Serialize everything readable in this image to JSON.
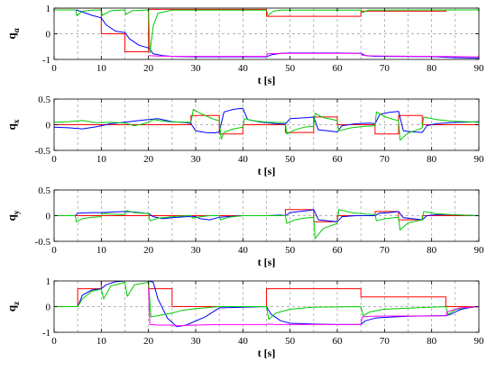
{
  "chart_data": [
    {
      "type": "line",
      "ylabel": "q",
      "ylabel_sub": "α",
      "xlabel": "t [s]",
      "xlim": [
        0,
        90
      ],
      "ylim": [
        -1,
        1
      ],
      "xticks": [
        0,
        10,
        20,
        30,
        40,
        50,
        60,
        70,
        80,
        90
      ],
      "yticks": [
        {
          "v": -1,
          "label": "-1"
        },
        {
          "v": 0,
          "label": "0"
        },
        {
          "v": 1,
          "label": "1"
        }
      ],
      "series": [
        {
          "color": "#ff0000",
          "x": [
            0,
            10,
            10,
            15,
            15,
            20,
            20,
            45,
            45,
            65,
            65,
            83,
            83,
            90
          ],
          "y": [
            1,
            1,
            0,
            0,
            -0.7,
            -0.7,
            0.95,
            0.95,
            0.68,
            0.68,
            0.88,
            0.88,
            0.93,
            0.93
          ]
        },
        {
          "color": "#0000ff",
          "x": [
            0,
            4.5,
            5.5,
            8,
            10,
            11,
            13,
            15,
            16,
            18,
            20,
            21,
            23,
            25,
            30,
            40,
            45,
            46,
            48,
            50,
            60,
            65,
            66,
            68,
            70,
            80,
            85,
            90
          ],
          "y": [
            0.93,
            0.93,
            0.88,
            0.72,
            0.62,
            0.35,
            0.1,
            0.05,
            -0.2,
            -0.45,
            -0.55,
            -0.78,
            -0.85,
            -0.88,
            -0.9,
            -0.9,
            -0.9,
            -0.82,
            -0.76,
            -0.75,
            -0.75,
            -0.76,
            -0.85,
            -0.88,
            -0.88,
            -0.89,
            -0.93,
            -0.95
          ]
        },
        {
          "color": "#00cc00",
          "x": [
            0,
            4.6,
            4.8,
            6,
            8,
            10,
            10.2,
            12,
            15,
            15.2,
            16.5,
            20,
            20.3,
            21,
            22,
            25,
            45,
            45.3,
            46.5,
            48,
            65,
            65.3,
            66.5,
            90
          ],
          "y": [
            0.93,
            0.93,
            0.7,
            0.88,
            0.92,
            0.93,
            0.72,
            0.9,
            0.93,
            0.75,
            0.9,
            0.93,
            -0.75,
            0.3,
            0.8,
            0.92,
            0.92,
            0.72,
            0.88,
            0.92,
            0.92,
            0.82,
            0.92,
            0.93
          ]
        },
        {
          "color": "#ff00ff",
          "x": [
            20,
            22,
            26,
            30,
            45,
            45.2,
            47,
            50,
            60,
            65,
            65.2,
            67,
            70,
            80,
            90
          ],
          "y": [
            -0.85,
            -0.87,
            -0.88,
            -0.88,
            -0.88,
            -0.78,
            -0.77,
            -0.76,
            -0.76,
            -0.76,
            -0.83,
            -0.86,
            -0.87,
            -0.88,
            -0.9
          ]
        }
      ]
    },
    {
      "type": "line",
      "ylabel": "q",
      "ylabel_sub": "x",
      "xlabel": "t [s]",
      "xlim": [
        0,
        90
      ],
      "ylim": [
        -0.5,
        0.5
      ],
      "xticks": [
        0,
        10,
        20,
        30,
        40,
        50,
        60,
        70,
        80,
        90
      ],
      "yticks": [
        {
          "v": -0.5,
          "label": "-0.5"
        },
        {
          "v": 0,
          "label": "0"
        },
        {
          "v": 0.5,
          "label": "0.5"
        }
      ],
      "series": [
        {
          "color": "#ff0000",
          "x": [
            0,
            29,
            29,
            35,
            35,
            40,
            40,
            49,
            49,
            55,
            55,
            60,
            60,
            68,
            68,
            73,
            73,
            78,
            78,
            90
          ],
          "y": [
            0,
            0,
            0.18,
            0.18,
            -0.18,
            -0.18,
            0,
            0,
            -0.15,
            -0.15,
            0.15,
            0.15,
            0,
            0,
            -0.18,
            -0.18,
            0.18,
            0.18,
            0,
            0
          ]
        },
        {
          "color": "#0000ff",
          "x": [
            0,
            3,
            6,
            9,
            12,
            15,
            18,
            20,
            22,
            25,
            28,
            29,
            30,
            32,
            34,
            35,
            36,
            38,
            40,
            41,
            44,
            47,
            49,
            50,
            52,
            54,
            55,
            56,
            58,
            60,
            61,
            64,
            67,
            68,
            69,
            71,
            73,
            74,
            76,
            78,
            79,
            81,
            84,
            87,
            90
          ],
          "y": [
            -0.05,
            -0.06,
            -0.08,
            -0.04,
            0.02,
            0.05,
            0.08,
            0.1,
            0.12,
            0.06,
            0.04,
            0.02,
            -0.12,
            -0.15,
            -0.16,
            -0.14,
            0.25,
            0.3,
            0.32,
            0.1,
            0.05,
            0.02,
            0.01,
            0.12,
            0.13,
            0.14,
            0.15,
            -0.1,
            -0.12,
            -0.14,
            -0.02,
            0.02,
            0.03,
            0.02,
            0.2,
            0.24,
            0.26,
            -0.12,
            -0.14,
            -0.15,
            -0.02,
            0.02,
            0.04,
            0.05,
            0.06
          ]
        },
        {
          "color": "#00cc00",
          "x": [
            0,
            3,
            6,
            9,
            12,
            15,
            17,
            19,
            20,
            21,
            24,
            28,
            29,
            29.5,
            31,
            33,
            34,
            35,
            35.4,
            36,
            38,
            40,
            40.3,
            42,
            45,
            49,
            49.3,
            51,
            53,
            55,
            55.3,
            57,
            59,
            60,
            60.3,
            63,
            66,
            68,
            68.3,
            70,
            72,
            73,
            73.3,
            75,
            77,
            78,
            78.3,
            81,
            84,
            87,
            90
          ],
          "y": [
            0.05,
            0.06,
            0.08,
            0.04,
            0.05,
            0.03,
            -0.02,
            0.02,
            0.05,
            0.1,
            0.06,
            0.05,
            0.05,
            0.3,
            0.22,
            0.14,
            0.1,
            0.08,
            -0.28,
            -0.15,
            -0.08,
            -0.05,
            0.12,
            0.08,
            0.05,
            0.04,
            -0.18,
            -0.1,
            -0.05,
            -0.03,
            0.22,
            0.14,
            0.1,
            0.08,
            -0.12,
            -0.06,
            -0.03,
            -0.02,
            0.25,
            0.16,
            0.1,
            0.08,
            -0.3,
            -0.16,
            -0.1,
            -0.06,
            0.15,
            0.1,
            0.07,
            0.06,
            0.05
          ]
        }
      ]
    },
    {
      "type": "line",
      "ylabel": "q",
      "ylabel_sub": "y",
      "xlabel": "t [s]",
      "xlim": [
        0,
        90
      ],
      "ylim": [
        -0.5,
        0.5
      ],
      "xticks": [
        0,
        10,
        20,
        30,
        40,
        50,
        60,
        70,
        80,
        90
      ],
      "yticks": [
        {
          "v": -0.5,
          "label": "-0.5"
        },
        {
          "v": 0,
          "label": "0"
        },
        {
          "v": 0.5,
          "label": "0.5"
        }
      ],
      "series": [
        {
          "color": "#ff0000",
          "x": [
            0,
            49,
            49,
            55,
            55,
            60,
            60,
            68,
            68,
            73,
            73,
            78,
            78,
            90
          ],
          "y": [
            0,
            0,
            0.12,
            0.12,
            -0.12,
            -0.12,
            0,
            0,
            0.08,
            0.08,
            -0.08,
            -0.08,
            0,
            0
          ]
        },
        {
          "color": "#0000ff",
          "x": [
            0,
            4.5,
            5,
            8,
            10,
            12,
            15,
            17,
            20,
            21,
            23,
            25,
            28,
            30,
            31,
            33,
            35,
            40,
            45,
            48,
            49,
            50,
            52,
            54,
            55,
            56,
            58,
            60,
            61,
            64,
            67,
            68,
            69,
            71,
            73,
            74,
            76,
            78,
            79,
            81,
            84,
            90
          ],
          "y": [
            0,
            0,
            0.05,
            0.06,
            0.06,
            0.07,
            0.08,
            0.07,
            0.04,
            -0.02,
            -0.06,
            -0.04,
            -0.02,
            -0.02,
            -0.06,
            -0.08,
            -0.03,
            0,
            0,
            0.01,
            0,
            0.06,
            0.08,
            0.1,
            0.12,
            -0.08,
            -0.1,
            -0.12,
            -0.02,
            0,
            0,
            0,
            0.05,
            0.06,
            0.08,
            -0.04,
            -0.06,
            -0.08,
            0,
            0.02,
            0.02,
            0
          ]
        },
        {
          "color": "#00cc00",
          "x": [
            0,
            4.5,
            4.7,
            6,
            8,
            10,
            10.3,
            12,
            15,
            15.3,
            17,
            20,
            20.3,
            22,
            24,
            26,
            29,
            29.3,
            31,
            33,
            35,
            35.3,
            37,
            40,
            45,
            49,
            49.3,
            51,
            53,
            55,
            55.3,
            57,
            60,
            60.3,
            63,
            66,
            68,
            68.3,
            70,
            73,
            73.3,
            75,
            78,
            78.3,
            81,
            84,
            90
          ],
          "y": [
            0,
            0,
            -0.12,
            -0.06,
            -0.03,
            -0.02,
            0.05,
            0.03,
            0.02,
            0.1,
            0.06,
            0.04,
            -0.1,
            -0.05,
            -0.03,
            -0.01,
            0,
            -0.05,
            -0.02,
            0,
            0,
            -0.08,
            -0.03,
            0,
            0,
            0,
            -0.15,
            -0.08,
            -0.05,
            -0.03,
            -0.45,
            -0.25,
            -0.15,
            0.12,
            0.06,
            0.03,
            0.02,
            -0.1,
            -0.06,
            -0.03,
            -0.28,
            -0.14,
            -0.08,
            0.08,
            0.04,
            0.02,
            0
          ]
        }
      ]
    },
    {
      "type": "line",
      "ylabel": "q",
      "ylabel_sub": "z",
      "xlabel": "t [s]",
      "xlim": [
        0,
        90
      ],
      "ylim": [
        -1,
        1
      ],
      "xticks": [
        0,
        10,
        20,
        30,
        40,
        50,
        60,
        70,
        80,
        90
      ],
      "yticks": [
        {
          "v": -1,
          "label": "-1"
        },
        {
          "v": 0,
          "label": "0"
        },
        {
          "v": 1,
          "label": "1"
        }
      ],
      "series": [
        {
          "color": "#ff0000",
          "x": [
            0,
            5,
            5,
            10,
            10,
            20,
            20,
            25,
            25,
            45,
            45,
            65,
            65,
            83,
            83,
            90
          ],
          "y": [
            0,
            0,
            0.7,
            0.7,
            1,
            1,
            0.7,
            0.7,
            0,
            0,
            0.7,
            0.7,
            0.38,
            0.38,
            0,
            0
          ]
        },
        {
          "color": "#0000ff",
          "x": [
            0,
            5,
            6,
            8,
            10,
            11,
            13,
            15,
            20,
            21,
            22,
            24,
            26,
            28,
            32,
            35,
            45,
            46,
            48,
            50,
            55,
            60,
            65,
            66,
            68,
            70,
            75,
            80,
            83,
            84,
            86,
            88,
            90
          ],
          "y": [
            0,
            0,
            0.45,
            0.65,
            0.7,
            0.85,
            0.97,
            1,
            1,
            0.95,
            0.3,
            -0.45,
            -0.78,
            -0.72,
            -0.4,
            -0.05,
            0,
            -0.3,
            -0.55,
            -0.65,
            -0.68,
            -0.7,
            -0.7,
            -0.55,
            -0.45,
            -0.42,
            -0.38,
            -0.36,
            -0.35,
            -0.3,
            -0.12,
            -0.04,
            0
          ]
        },
        {
          "color": "#00cc00",
          "x": [
            0,
            5,
            6,
            8,
            10,
            10.5,
            12,
            15,
            15.5,
            17,
            20,
            20.5,
            22,
            25,
            27,
            30,
            35,
            45,
            45.5,
            47,
            50,
            55,
            65,
            65.5,
            67,
            70,
            80,
            83,
            83.5,
            85,
            87,
            90
          ],
          "y": [
            0,
            0,
            0.3,
            0.6,
            0.68,
            0.3,
            0.8,
            0.95,
            0.4,
            0.85,
            0.95,
            -0.4,
            -0.35,
            -0.25,
            -0.15,
            -0.08,
            0,
            0,
            -0.5,
            -0.25,
            -0.1,
            -0.02,
            0,
            -0.35,
            -0.2,
            -0.1,
            -0.02,
            0,
            -0.3,
            -0.12,
            -0.04,
            0
          ]
        },
        {
          "color": "#ff00ff",
          "x": [
            20,
            20.3,
            22,
            25,
            25.3,
            30,
            35,
            45,
            45.3,
            47,
            50,
            65,
            65.3,
            67,
            70,
            83,
            83.3,
            86,
            90
          ],
          "y": [
            0.7,
            -0.7,
            -0.72,
            -0.72,
            -0.75,
            -0.72,
            -0.7,
            -0.7,
            -0.68,
            -0.7,
            -0.7,
            -0.7,
            -0.4,
            -0.38,
            -0.37,
            -0.36,
            -0.2,
            -0.05,
            0
          ]
        }
      ]
    }
  ]
}
